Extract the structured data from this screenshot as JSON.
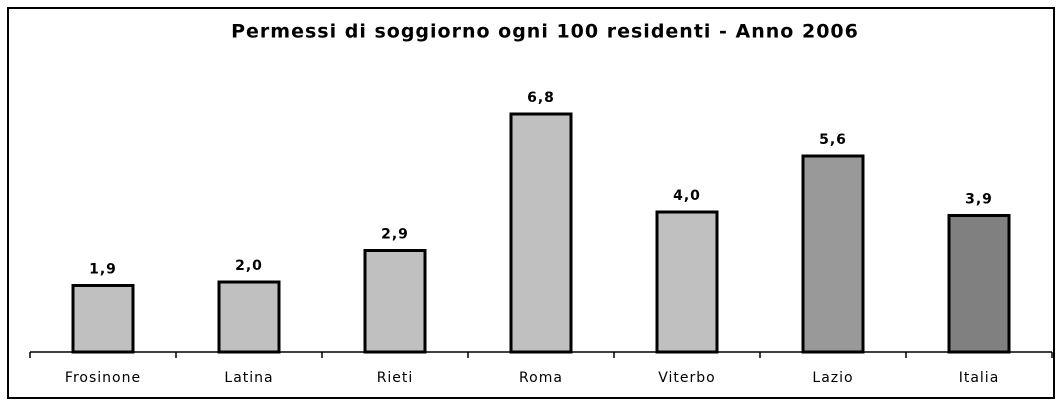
{
  "chart_data": {
    "type": "bar",
    "title": "Permessi di soggiorno ogni 100 residenti - Anno 2006",
    "categories": [
      "Frosinone",
      "Latina",
      "Rieti",
      "Roma",
      "Viterbo",
      "Lazio",
      "Italia"
    ],
    "values": [
      1.9,
      2.0,
      2.9,
      6.8,
      4.0,
      5.6,
      3.9
    ],
    "value_labels": [
      "1,9",
      "2,0",
      "2,9",
      "6,8",
      "4,0",
      "5,6",
      "3,9"
    ],
    "colors": [
      "#c0c0c0",
      "#c0c0c0",
      "#c0c0c0",
      "#c0c0c0",
      "#c0c0c0",
      "#999999",
      "#808080"
    ],
    "ylim": [
      0,
      8
    ]
  }
}
